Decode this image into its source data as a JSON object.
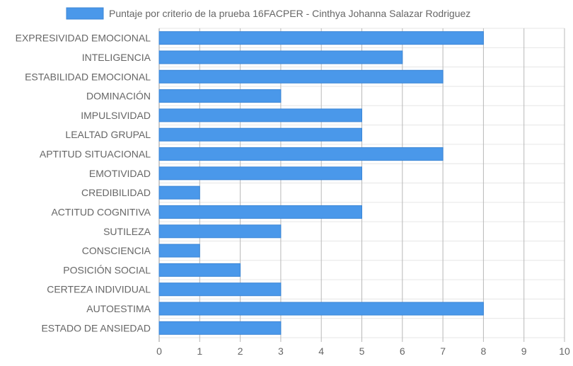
{
  "chart_data": {
    "type": "bar",
    "orientation": "horizontal",
    "title": "",
    "xlabel": "",
    "ylabel": "",
    "categories": [
      "EXPRESIVIDAD EMOCIONAL",
      "INTELIGENCIA",
      "ESTABILIDAD EMOCIONAL",
      "DOMINACIÓN",
      "IMPULSIVIDAD",
      "LEALTAD GRUPAL",
      "APTITUD SITUACIONAL",
      "EMOTIVIDAD",
      "CREDIBILIDAD",
      "ACTITUD COGNITIVA",
      "SUTILEZA",
      "CONSCIENCIA",
      "POSICIÓN SOCIAL",
      "CERTEZA INDIVIDUAL",
      "AUTOESTIMA",
      "ESTADO DE ANSIEDAD"
    ],
    "series": [
      {
        "name": "Puntaje por criterio de la prueba 16FACPER - Cinthya Johanna Salazar Rodriguez",
        "values": [
          8,
          6,
          7,
          3,
          5,
          5,
          7,
          5,
          1,
          5,
          3,
          1,
          2,
          3,
          8,
          3
        ],
        "color": "#4a98ea",
        "border_color": "#3b86d6"
      }
    ],
    "xlim": [
      0,
      10
    ],
    "x_ticks": [
      "0",
      "1",
      "2",
      "3",
      "4",
      "5",
      "6",
      "7",
      "8",
      "9",
      "10"
    ],
    "grid": true,
    "legend_position": "top-center"
  }
}
